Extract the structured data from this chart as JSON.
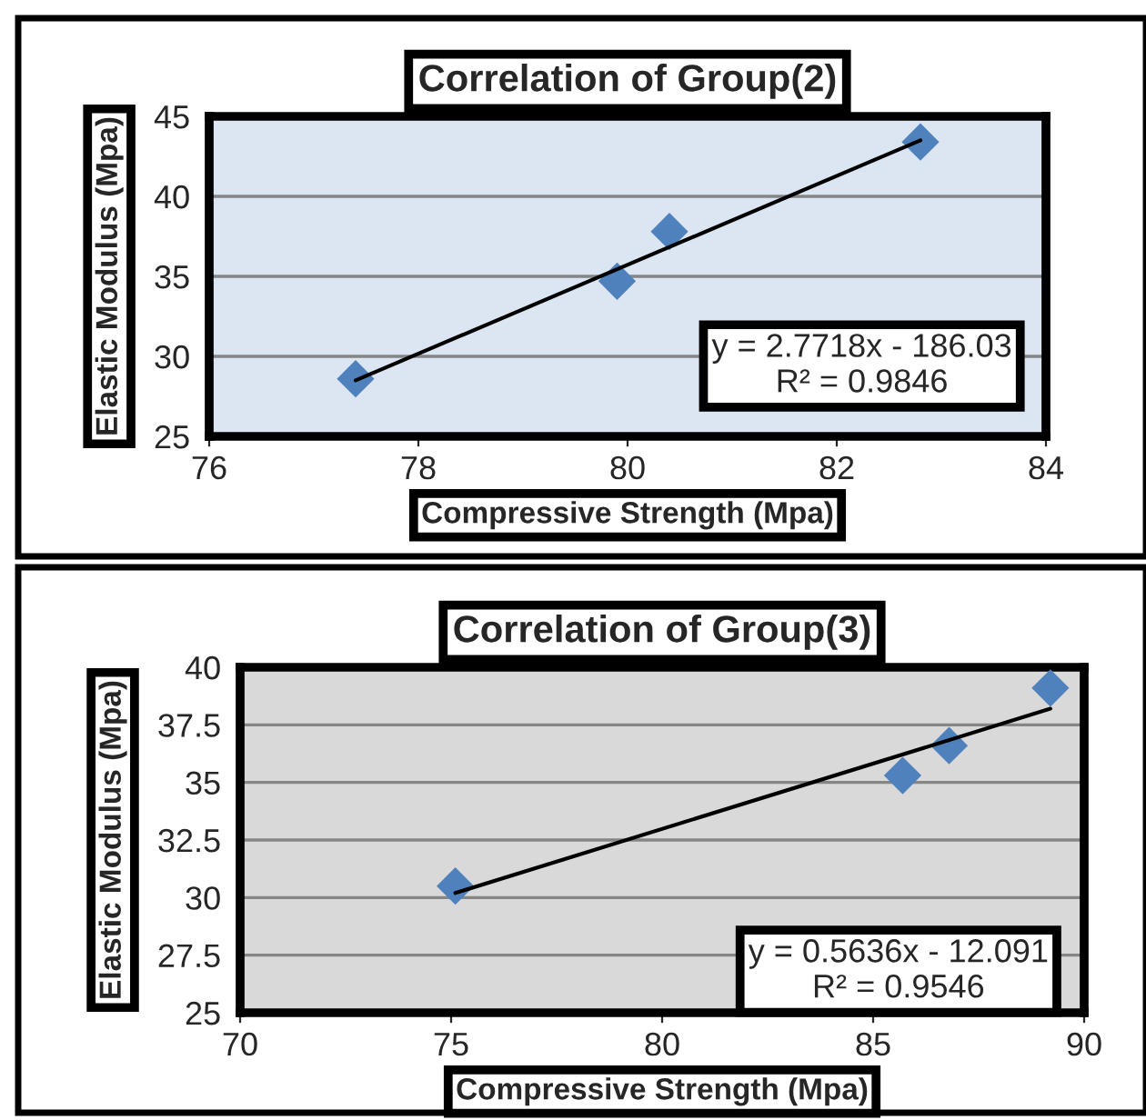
{
  "chart_data": [
    {
      "type": "scatter",
      "title": "Correlation of Group(2)",
      "xlabel": "Compressive Strength (Mpa)",
      "ylabel": "Elastic Modulus (Mpa)",
      "xlim": [
        76,
        84
      ],
      "xticks": [
        76,
        78,
        80,
        82,
        84
      ],
      "ylim": [
        25,
        45
      ],
      "yticks": [
        25,
        30,
        35,
        40,
        45
      ],
      "grid": "y",
      "marker": "diamond",
      "legend": false,
      "annotations": [
        "y = 2.7718x - 186.03\nR² = 0.9846"
      ],
      "series": [
        {
          "color": "#4f81bd",
          "x": [
            77.4,
            79.9,
            80.4,
            82.8
          ],
          "values": [
            28.6,
            34.7,
            37.8,
            43.4
          ]
        },
        {
          "type": "line",
          "color": "#000000",
          "marker": "none",
          "line_style": "solid",
          "x": [
            77.4,
            82.8
          ],
          "values": [
            28.5,
            43.5
          ]
        }
      ]
    },
    {
      "type": "scatter",
      "title": "Correlation of Group(3)",
      "xlabel": "Compressive Strength (Mpa)",
      "ylabel": "Elastic Modulus (Mpa)",
      "xlim": [
        70,
        90
      ],
      "xticks": [
        70,
        75,
        80,
        85,
        90
      ],
      "ylim": [
        25,
        40
      ],
      "yticks": [
        25,
        27.5,
        30,
        32.5,
        35,
        37.5,
        40
      ],
      "grid": "y",
      "marker": "diamond",
      "legend": false,
      "annotations": [
        "y = 0.5636x - 12.091\nR² = 0.9546"
      ],
      "series": [
        {
          "color": "#4f81bd",
          "x": [
            75.1,
            85.7,
            86.8,
            89.2
          ],
          "values": [
            30.5,
            35.3,
            36.6,
            39.1
          ]
        },
        {
          "type": "line",
          "color": "#000000",
          "marker": "none",
          "line_style": "solid",
          "x": [
            75.1,
            89.2
          ],
          "values": [
            30.2,
            38.2
          ]
        }
      ]
    }
  ]
}
